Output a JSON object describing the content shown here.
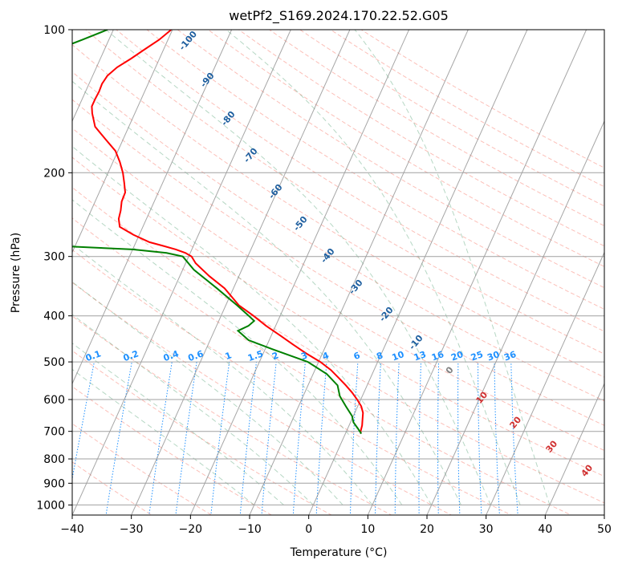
{
  "chart_data": {
    "type": "line",
    "chart_kind": "skew-t log-p",
    "title": "wetPf2_S169.2024.170.22.52.G05",
    "xlabel": "Temperature (°C)",
    "ylabel": "Pressure (hPa)",
    "xlim": [
      -40,
      50
    ],
    "ylim": [
      1050,
      100
    ],
    "y_scale": "log",
    "grid": true,
    "x_ticks": [
      -40,
      -30,
      -20,
      -10,
      0,
      10,
      20,
      30,
      40,
      50
    ],
    "x_tick_labels": [
      "−40",
      "−30",
      "−20",
      "−10",
      "0",
      "10",
      "20",
      "30",
      "40",
      "50"
    ],
    "y_ticks": [
      100,
      200,
      300,
      400,
      500,
      600,
      700,
      800,
      900,
      1000
    ],
    "y_tick_labels": [
      "100",
      "200",
      "300",
      "400",
      "500",
      "600",
      "700",
      "800",
      "900",
      "1000"
    ],
    "series": [
      {
        "role": "temperature",
        "color": "#ff0000",
        "points": [
          [
            100,
            -60.2
          ],
          [
            105,
            -61.5
          ],
          [
            110,
            -63.2
          ],
          [
            115,
            -64.8
          ],
          [
            120,
            -66.5
          ],
          [
            125,
            -67.5
          ],
          [
            130,
            -67.8
          ],
          [
            135,
            -67.7
          ],
          [
            140,
            -67.8
          ],
          [
            145,
            -67.8
          ],
          [
            150,
            -67.2
          ],
          [
            160,
            -65.7
          ],
          [
            170,
            -63.0
          ],
          [
            180,
            -60.4
          ],
          [
            190,
            -58.8
          ],
          [
            200,
            -57.5
          ],
          [
            210,
            -56.5
          ],
          [
            220,
            -55.6
          ],
          [
            230,
            -55.5
          ],
          [
            240,
            -55.0
          ],
          [
            250,
            -54.7
          ],
          [
            260,
            -53.9
          ],
          [
            270,
            -51.0
          ],
          [
            280,
            -47.7
          ],
          [
            285,
            -45.1
          ],
          [
            290,
            -42.7
          ],
          [
            295,
            -40.8
          ],
          [
            300,
            -39.5
          ],
          [
            310,
            -38.3
          ],
          [
            330,
            -35.0
          ],
          [
            350,
            -31.5
          ],
          [
            380,
            -27.8
          ],
          [
            400,
            -24.5
          ],
          [
            420,
            -21.6
          ],
          [
            440,
            -18.5
          ],
          [
            460,
            -15.6
          ],
          [
            480,
            -12.7
          ],
          [
            500,
            -9.7
          ],
          [
            520,
            -7.3
          ],
          [
            540,
            -5.4
          ],
          [
            560,
            -3.6
          ],
          [
            580,
            -2.0
          ],
          [
            600,
            -0.6
          ],
          [
            620,
            0.6
          ],
          [
            640,
            1.4
          ],
          [
            660,
            1.8
          ],
          [
            680,
            2.2
          ],
          [
            700,
            2.4
          ],
          [
            708,
            2.6
          ]
        ]
      },
      {
        "role": "dewpoint",
        "color": "#008000",
        "points": [
          [
            100,
            -71.0
          ],
          [
            105,
            -74.5
          ],
          [
            110,
            -78.0
          ],
          [
            115,
            -82.0
          ],
          [
            120,
            -86.0
          ],
          [
            125,
            -89.0
          ],
          [
            130,
            -92.0
          ],
          [
            135,
            -95.0
          ],
          [
            140,
            -97.8
          ],
          [
            145,
            -96.0
          ],
          [
            150,
            -92.6
          ],
          [
            160,
            -89.0
          ],
          [
            170,
            -85.6
          ],
          [
            180,
            -82.2
          ],
          [
            190,
            -79.0
          ],
          [
            200,
            -76.0
          ],
          [
            210,
            -72.5
          ],
          [
            220,
            -69.0
          ],
          [
            230,
            -68.3
          ],
          [
            240,
            -69.0
          ],
          [
            250,
            -71.4
          ],
          [
            260,
            -72.9
          ],
          [
            270,
            -73.9
          ],
          [
            280,
            -71.3
          ],
          [
            285,
            -63.0
          ],
          [
            290,
            -50.0
          ],
          [
            295,
            -44.0
          ],
          [
            300,
            -41.0
          ],
          [
            320,
            -38.1
          ],
          [
            350,
            -32.8
          ],
          [
            380,
            -28.1
          ],
          [
            400,
            -25.3
          ],
          [
            410,
            -24.0
          ],
          [
            420,
            -24.6
          ],
          [
            430,
            -26.0
          ],
          [
            450,
            -23.5
          ],
          [
            470,
            -18.8
          ],
          [
            500,
            -11.8
          ],
          [
            530,
            -7.7
          ],
          [
            560,
            -5.0
          ],
          [
            590,
            -3.8
          ],
          [
            620,
            -2.0
          ],
          [
            650,
            -0.2
          ],
          [
            670,
            0.5
          ],
          [
            690,
            1.7
          ],
          [
            708,
            2.7
          ]
        ]
      }
    ],
    "dry_adiabat_labels": [
      "-100",
      "-90",
      "-80",
      "-70",
      "-60",
      "-50",
      "-40",
      "-30",
      "-20",
      "-10",
      "0",
      "10",
      "20",
      "30",
      "40"
    ],
    "mixing_ratio_labels": [
      "0.1",
      "0.2",
      "0.4",
      "0.6",
      "1",
      "1.5",
      "2",
      "3",
      "4",
      "6",
      "8",
      "10",
      "13",
      "16",
      "20",
      "25",
      "30",
      "36"
    ]
  }
}
